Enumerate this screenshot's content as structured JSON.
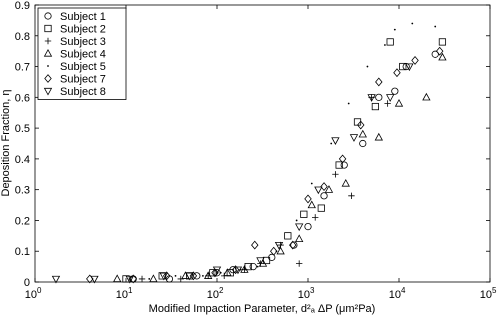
{
  "chart_data": {
    "type": "scatter",
    "xlabel": "Modified Impaction Parameter, d²ₐ ΔP (μm²Pa)",
    "ylabel": "Deposition Fraction, η",
    "xscale": "log",
    "xlim": [
      1,
      100000
    ],
    "ylim": [
      0,
      0.9
    ],
    "xticks": [
      {
        "value": 1,
        "label": "10",
        "exponent": "0"
      },
      {
        "value": 10,
        "label": "10",
        "exponent": "1"
      },
      {
        "value": 100,
        "label": "10",
        "exponent": "2"
      },
      {
        "value": 1000,
        "label": "10",
        "exponent": "3"
      },
      {
        "value": 10000,
        "label": "10",
        "exponent": "4"
      },
      {
        "value": 100000,
        "label": "10",
        "exponent": "5"
      }
    ],
    "yticks": [
      0,
      0.1,
      0.2,
      0.3,
      0.4,
      0.5,
      0.6,
      0.7,
      0.8,
      0.9
    ],
    "legend": "upper left",
    "series": [
      {
        "name": "Subject 1",
        "marker": "circle",
        "color": "#000000",
        "x": [
          12,
          30,
          60,
          100,
          150,
          250,
          400,
          700,
          1000,
          1500,
          2500,
          4000,
          6000,
          9000,
          12000,
          25000
        ],
        "values": [
          0.01,
          0.01,
          0.02,
          0.03,
          0.04,
          0.05,
          0.08,
          0.12,
          0.18,
          0.28,
          0.38,
          0.45,
          0.6,
          0.62,
          0.7,
          0.74
        ]
      },
      {
        "name": "Subject 2",
        "marker": "square",
        "color": "#000000",
        "x": [
          10,
          25,
          50,
          90,
          140,
          220,
          350,
          600,
          900,
          1400,
          2200,
          3500,
          5500,
          8000,
          11000,
          30000
        ],
        "values": [
          0.01,
          0.02,
          0.02,
          0.03,
          0.03,
          0.05,
          0.07,
          0.15,
          0.22,
          0.24,
          0.38,
          0.52,
          0.57,
          0.78,
          0.7,
          0.78
        ]
      },
      {
        "name": "Subject 3",
        "marker": "plus",
        "color": "#000000",
        "x": [
          15,
          40,
          80,
          120,
          200,
          300,
          500,
          800,
          1200,
          2000,
          3000,
          5000,
          7500
        ],
        "values": [
          0.01,
          0.01,
          0.02,
          0.02,
          0.04,
          0.06,
          0.12,
          0.06,
          0.21,
          0.35,
          0.28,
          0.6,
          0.58
        ]
      },
      {
        "name": "Subject 4",
        "marker": "triangle-up",
        "color": "#000000",
        "x": [
          8,
          20,
          45,
          80,
          130,
          200,
          320,
          500,
          800,
          1100,
          1700,
          2600,
          4000,
          6000,
          10000,
          20000,
          30000
        ],
        "values": [
          0.01,
          0.01,
          0.02,
          0.02,
          0.03,
          0.04,
          0.06,
          0.1,
          0.14,
          0.25,
          0.3,
          0.32,
          0.48,
          0.47,
          0.58,
          0.6,
          0.73
        ]
      },
      {
        "name": "Subject 5",
        "marker": "dot",
        "color": "#000000",
        "x": [
          18,
          35,
          70,
          110,
          180,
          280,
          450,
          750,
          1100,
          1800,
          2800,
          4500,
          7000,
          9000,
          14000,
          25000
        ],
        "values": [
          0.01,
          0.02,
          0.02,
          0.03,
          0.04,
          0.05,
          0.1,
          0.2,
          0.32,
          0.45,
          0.58,
          0.7,
          0.77,
          0.82,
          0.84,
          0.83
        ]
      },
      {
        "name": "Subject 7",
        "marker": "diamond",
        "color": "#000000",
        "x": [
          4,
          12,
          28,
          55,
          95,
          160,
          260,
          420,
          680,
          1000,
          1500,
          2400,
          3800,
          6000,
          9500,
          15000,
          28000
        ],
        "values": [
          0.01,
          0.01,
          0.02,
          0.02,
          0.03,
          0.04,
          0.12,
          0.1,
          0.12,
          0.27,
          0.31,
          0.4,
          0.51,
          0.65,
          0.68,
          0.72,
          0.75
        ]
      },
      {
        "name": "Subject 8",
        "marker": "triangle-down",
        "color": "#000000",
        "x": [
          1.7,
          4.5,
          11,
          26,
          50,
          100,
          170,
          300,
          480,
          800,
          1300,
          2000,
          3200,
          5000,
          8000,
          13000
        ],
        "values": [
          0.01,
          0.01,
          0.01,
          0.02,
          0.02,
          0.04,
          0.04,
          0.07,
          0.12,
          0.18,
          0.3,
          0.46,
          0.47,
          0.6,
          0.6,
          0.7
        ]
      }
    ]
  }
}
